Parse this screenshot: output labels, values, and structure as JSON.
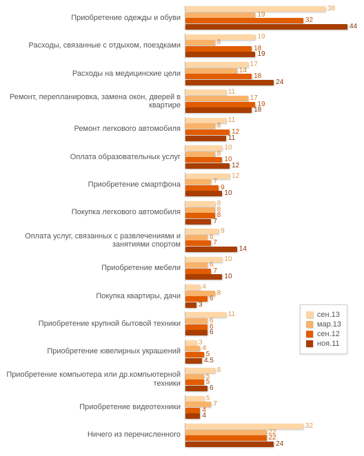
{
  "chart": {
    "type": "bar",
    "orientation": "horizontal",
    "background_color": "#ffffff",
    "label_fontsize": 11,
    "label_color": "#555555",
    "value_fontsize": 10,
    "xlim": [
      0,
      44
    ],
    "series": [
      {
        "key": "s1",
        "label": "сен.13",
        "color": "#ffd6a5",
        "text_color": "#e19a4d"
      },
      {
        "key": "s2",
        "label": "мар.13",
        "color": "#f8b26a",
        "text_color": "#d6822f"
      },
      {
        "key": "s3",
        "label": "сен.12",
        "color": "#e25c00",
        "text_color": "#c24e00"
      },
      {
        "key": "s4",
        "label": "ноя.11",
        "color": "#a83e00",
        "text_color": "#8a3300"
      }
    ],
    "legend": {
      "title": null,
      "position": "right-lower"
    },
    "categories": [
      {
        "label": "Приобретение одежды и обуви",
        "values": [
          38,
          19,
          32,
          44
        ]
      },
      {
        "label": "Расходы, связанные с отдыхом, поездками",
        "values": [
          19,
          8,
          18,
          19
        ]
      },
      {
        "label": "Расходы на медицинские цели",
        "values": [
          17,
          14,
          18,
          24
        ]
      },
      {
        "label": "Ремонт, перепланировка, замена окон, дверей в квартире",
        "values": [
          11,
          17,
          19,
          18
        ]
      },
      {
        "label": "Ремонт легкового автомобиля",
        "values": [
          11,
          8,
          12,
          11
        ]
      },
      {
        "label": "Оплата образовательных услуг",
        "values": [
          10,
          8,
          10,
          12
        ]
      },
      {
        "label": "Приобретение смартфона",
        "values": [
          12,
          7,
          9,
          10
        ]
      },
      {
        "label": "Покупка легкового автомобиля",
        "values": [
          8,
          8,
          8,
          7
        ]
      },
      {
        "label": "Оплата услуг, связанных с развлечениями и занятиями спортом",
        "values": [
          9,
          6,
          7,
          14
        ]
      },
      {
        "label": "Приобретение мебели",
        "values": [
          10,
          6,
          7,
          10
        ]
      },
      {
        "label": "Покупка квартиры, дачи",
        "values": [
          4,
          8,
          6,
          3
        ]
      },
      {
        "label": "Приобретение крупной бытовой техники",
        "values": [
          11,
          6,
          6,
          6
        ]
      },
      {
        "label": "Приобретение ювелирных украшений",
        "values": [
          3,
          4,
          5,
          4.5
        ]
      },
      {
        "label": "Приобретение компьютера или др.компьютерной техники",
        "values": [
          8,
          5,
          5,
          6
        ]
      },
      {
        "label": "Приобретение видеотехники",
        "values": [
          5,
          7,
          4,
          4
        ]
      },
      {
        "label": "Ничего из перечисленного",
        "values": [
          32,
          22,
          22,
          24
        ]
      }
    ]
  }
}
